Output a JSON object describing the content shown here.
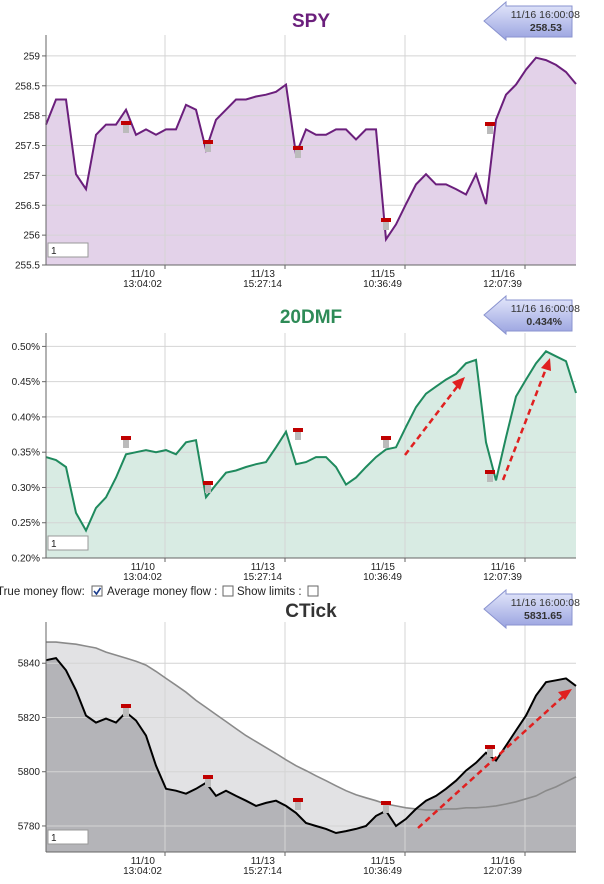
{
  "chart_data": [
    {
      "type": "line",
      "title": "SPY",
      "title_color": "#6b1f7c",
      "callout": [
        "11/16 16:00:08",
        "258.53"
      ],
      "zoom_input": "1",
      "xlim": [
        0,
        53
      ],
      "xticks": [
        {
          "value": 11.9,
          "label": "11/10 13:04:02"
        },
        {
          "value": 23.9,
          "label": "11/13 15:27:14"
        },
        {
          "value": 35.9,
          "label": "11/15 10:36:49"
        },
        {
          "value": 47.9,
          "label": "11/16 12:07:39"
        }
      ],
      "ylim": [
        255.5,
        259.35
      ],
      "yticks": [
        255.5,
        256,
        256.5,
        257,
        257.5,
        258,
        258.5,
        259
      ],
      "grid": true,
      "series": [
        {
          "color": "#6b1f7c",
          "fill": "#e3d2e9",
          "values": [
            257.85,
            258.27,
            258.27,
            257.02,
            256.77,
            257.68,
            257.85,
            257.85,
            258.1,
            257.68,
            257.77,
            257.68,
            257.77,
            257.77,
            258.18,
            258.1,
            257.43,
            257.93,
            258.1,
            258.27,
            258.27,
            258.32,
            258.35,
            258.4,
            258.52,
            257.35,
            257.77,
            257.68,
            257.68,
            257.77,
            257.77,
            257.6,
            257.77,
            257.77,
            255.93,
            256.18,
            256.52,
            256.85,
            257.02,
            256.85,
            256.85,
            256.77,
            256.68,
            257.02,
            256.52,
            257.93,
            258.35,
            258.52,
            258.77,
            258.97,
            258.93,
            258.85,
            258.73,
            258.53
          ]
        }
      ]
    },
    {
      "type": "line",
      "title": "20DMF",
      "title_color": "#2e8b57",
      "callout": [
        "11/16 16:00:08",
        "0.434%"
      ],
      "zoom_input": "1",
      "xlim": [
        0,
        53
      ],
      "xticks": [
        {
          "value": 11.9,
          "label": "11/10 13:04:02"
        },
        {
          "value": 23.9,
          "label": "11/13 15:27:14"
        },
        {
          "value": 35.9,
          "label": "11/15 10:36:49"
        },
        {
          "value": 47.9,
          "label": "11/16 12:07:39"
        }
      ],
      "ylim": [
        0.2,
        0.519
      ],
      "yticks": [
        {
          "value": 0.2,
          "label": "0.20%"
        },
        {
          "value": 0.25,
          "label": "0.25%"
        },
        {
          "value": 0.3,
          "label": "0.30%"
        },
        {
          "value": 0.35,
          "label": "0.35%"
        },
        {
          "value": 0.4,
          "label": "0.40%"
        },
        {
          "value": 0.45,
          "label": "0.45%"
        },
        {
          "value": 0.5,
          "label": "0.50%"
        }
      ],
      "grid": true,
      "series": [
        {
          "color": "#1f8a5e",
          "fill": "#d8ebe3",
          "values": [
            0.343,
            0.339,
            0.329,
            0.264,
            0.239,
            0.271,
            0.286,
            0.314,
            0.347,
            0.35,
            0.353,
            0.35,
            0.353,
            0.347,
            0.364,
            0.367,
            0.286,
            0.304,
            0.321,
            0.324,
            0.329,
            0.333,
            0.336,
            0.357,
            0.379,
            0.333,
            0.336,
            0.343,
            0.343,
            0.329,
            0.304,
            0.314,
            0.329,
            0.343,
            0.354,
            0.357,
            0.386,
            0.414,
            0.433,
            0.443,
            0.453,
            0.461,
            0.476,
            0.481,
            0.364,
            0.31,
            0.371,
            0.429,
            0.453,
            0.476,
            0.493,
            0.486,
            0.479,
            0.434
          ]
        }
      ]
    },
    {
      "type": "line",
      "title": "CTick",
      "title_color": "#333333",
      "callout": [
        "11/16 16:00:08",
        "5831.65"
      ],
      "zoom_input": "1",
      "xlim": [
        0,
        53
      ],
      "xticks": [
        {
          "value": 11.9,
          "label": "11/10 13:04:02"
        },
        {
          "value": 23.9,
          "label": "11/13 15:27:14"
        },
        {
          "value": 35.9,
          "label": "11/15 10:36:49"
        },
        {
          "value": 47.9,
          "label": "11/16 12:07:39"
        }
      ],
      "ylim": [
        5770.4,
        5855.2
      ],
      "yticks": [
        5780,
        5800,
        5820,
        5840
      ],
      "grid": true,
      "series": [
        {
          "color": "#8a8a8a",
          "fill": "#e2e2e4",
          "values": [
            5847.8,
            5847.8,
            5847.4,
            5847.0,
            5846.3,
            5845.6,
            5844.1,
            5843.0,
            5841.9,
            5840.7,
            5839.3,
            5837.0,
            5834.4,
            5831.9,
            5829.3,
            5826.3,
            5823.7,
            5821.1,
            5818.5,
            5815.9,
            5813.3,
            5811.1,
            5808.9,
            5806.7,
            5804.4,
            5802.2,
            5800.4,
            5798.5,
            5796.7,
            5794.8,
            5793.0,
            5791.5,
            5790.4,
            5789.3,
            5788.1,
            5787.4,
            5786.7,
            5786.3,
            5785.9,
            5785.9,
            5786.3,
            5786.3,
            5786.7,
            5786.7,
            5787.0,
            5787.4,
            5788.1,
            5788.9,
            5790.0,
            5791.1,
            5793.0,
            5794.4,
            5796.3,
            5798.1
          ]
        },
        {
          "color": "#000000",
          "fill": "#b4b4b8",
          "values": [
            5841.1,
            5841.9,
            5837.4,
            5830.0,
            5820.7,
            5818.1,
            5819.6,
            5818.1,
            5821.9,
            5818.9,
            5813.3,
            5802.2,
            5793.7,
            5793.0,
            5791.9,
            5793.7,
            5795.9,
            5791.1,
            5793.0,
            5791.1,
            5789.3,
            5787.4,
            5788.5,
            5789.3,
            5787.4,
            5784.8,
            5781.1,
            5780.0,
            5778.9,
            5777.4,
            5778.1,
            5778.9,
            5780.0,
            5783.7,
            5785.6,
            5780.0,
            5782.6,
            5786.3,
            5789.3,
            5791.1,
            5793.7,
            5796.7,
            5800.4,
            5803.3,
            5807.0,
            5804.1,
            5809.6,
            5815.2,
            5820.7,
            5828.1,
            5833.0,
            5833.7,
            5834.4,
            5831.65
          ]
        }
      ]
    }
  ],
  "controls": {
    "true_money_flow": "True money flow:",
    "true_money_flow_checked": true,
    "average_money_flow": "Average money flow :",
    "average_money_flow_checked": false,
    "show_limits": "Show limits :",
    "show_limits_checked": false
  }
}
